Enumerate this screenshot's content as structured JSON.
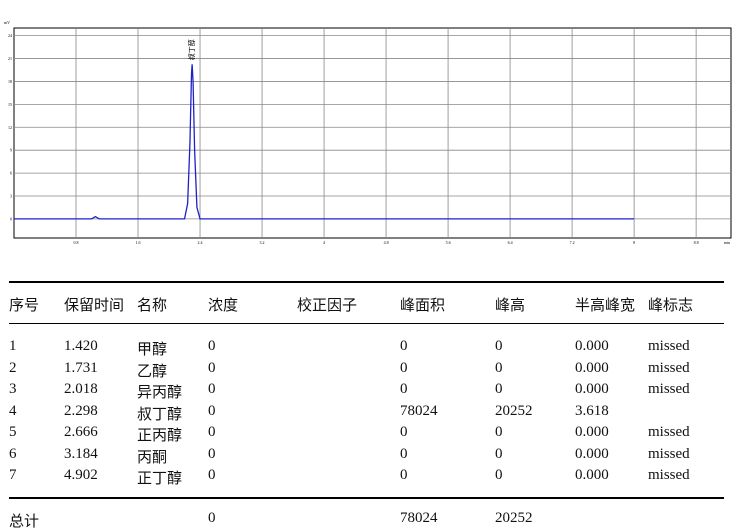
{
  "chart_data": {
    "type": "line",
    "x_label": "min",
    "y_label": "mV",
    "annotation": "叔丁醇",
    "x": [
      0,
      1.0,
      1.05,
      1.1,
      2.2,
      2.24,
      2.27,
      2.29,
      2.298,
      2.31,
      2.33,
      2.36,
      2.4,
      8.0
    ],
    "values": [
      0,
      0,
      0.3,
      0,
      0,
      2,
      10,
      19,
      20.25,
      18,
      9,
      1.5,
      0,
      0
    ],
    "color": "#1f1fcc",
    "xlim": [
      0,
      9.25
    ],
    "xticks": [
      0.8,
      1.6,
      2.4,
      3.2,
      4,
      4.8,
      5.6,
      6.4,
      7.2,
      8,
      8.8
    ],
    "ylim": [
      -2.5,
      25
    ],
    "yticks": [
      0,
      3,
      6,
      9,
      12,
      15,
      18,
      21,
      24
    ],
    "grid": true
  },
  "table": {
    "header": [
      "序号",
      "保留时间",
      "名称",
      "浓度",
      "校正因子",
      "峰面积",
      "峰高",
      "半高峰宽",
      "峰标志"
    ],
    "rows": [
      [
        "1",
        "1.420",
        "甲醇",
        "0",
        "",
        "0",
        "0",
        "0.000",
        "missed"
      ],
      [
        "2",
        "1.731",
        "乙醇",
        "0",
        "",
        "0",
        "0",
        "0.000",
        "missed"
      ],
      [
        "3",
        "2.018",
        "异丙醇",
        "0",
        "",
        "0",
        "0",
        "0.000",
        "missed"
      ],
      [
        "4",
        "2.298",
        "叔丁醇",
        "0",
        "",
        "78024",
        "20252",
        "3.618",
        ""
      ],
      [
        "5",
        "2.666",
        "正丙醇",
        "0",
        "",
        "0",
        "0",
        "0.000",
        "missed"
      ],
      [
        "6",
        "3.184",
        "丙酮",
        "0",
        "",
        "0",
        "0",
        "0.000",
        "missed"
      ],
      [
        "7",
        "4.902",
        "正丁醇",
        "0",
        "",
        "0",
        "0",
        "0.000",
        "missed"
      ]
    ],
    "total": {
      "label": "总计",
      "concentration": "0",
      "area": "78024",
      "height": "20252"
    }
  }
}
